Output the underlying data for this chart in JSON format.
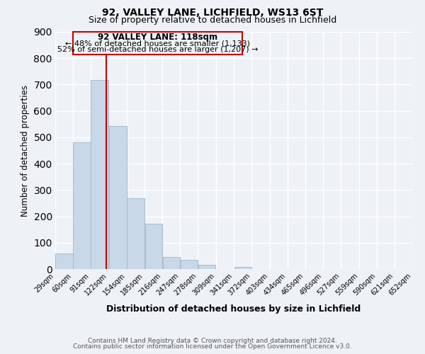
{
  "title1": "92, VALLEY LANE, LICHFIELD, WS13 6ST",
  "title2": "Size of property relative to detached houses in Lichfield",
  "xlabel": "Distribution of detached houses by size in Lichfield",
  "ylabel": "Number of detached properties",
  "bar_left_edges": [
    29,
    60,
    91,
    122,
    154,
    185,
    216,
    247,
    278,
    309,
    341,
    372,
    403,
    434,
    465,
    496,
    527,
    559,
    590,
    621
  ],
  "bar_widths": [
    31,
    31,
    31,
    32,
    31,
    31,
    31,
    31,
    31,
    32,
    31,
    31,
    31,
    31,
    31,
    31,
    32,
    31,
    31,
    31
  ],
  "bar_heights": [
    60,
    480,
    718,
    543,
    270,
    173,
    47,
    35,
    15,
    0,
    8,
    0,
    0,
    0,
    0,
    0,
    0,
    0,
    0,
    0
  ],
  "bar_color": "#c8d8e8",
  "bar_edgecolor": "#aabbcc",
  "tick_labels": [
    "29sqm",
    "60sqm",
    "91sqm",
    "122sqm",
    "154sqm",
    "185sqm",
    "216sqm",
    "247sqm",
    "278sqm",
    "309sqm",
    "341sqm",
    "372sqm",
    "403sqm",
    "434sqm",
    "465sqm",
    "496sqm",
    "527sqm",
    "559sqm",
    "590sqm",
    "621sqm",
    "652sqm"
  ],
  "tick_positions": [
    29,
    60,
    91,
    122,
    154,
    185,
    216,
    247,
    278,
    309,
    341,
    372,
    403,
    434,
    465,
    496,
    527,
    559,
    590,
    621,
    652
  ],
  "ylim": [
    0,
    900
  ],
  "xlim": [
    29,
    652
  ],
  "vline_x": 118,
  "vline_color": "#cc0000",
  "annotation_title": "92 VALLEY LANE: 118sqm",
  "annotation_line1": "← 48% of detached houses are smaller (1,133)",
  "annotation_line2": "52% of semi-detached houses are larger (1,207) →",
  "footer1": "Contains HM Land Registry data © Crown copyright and database right 2024.",
  "footer2": "Contains public sector information licensed under the Open Government Licence v3.0.",
  "background_color": "#eef2f7",
  "grid_color": "#ffffff"
}
